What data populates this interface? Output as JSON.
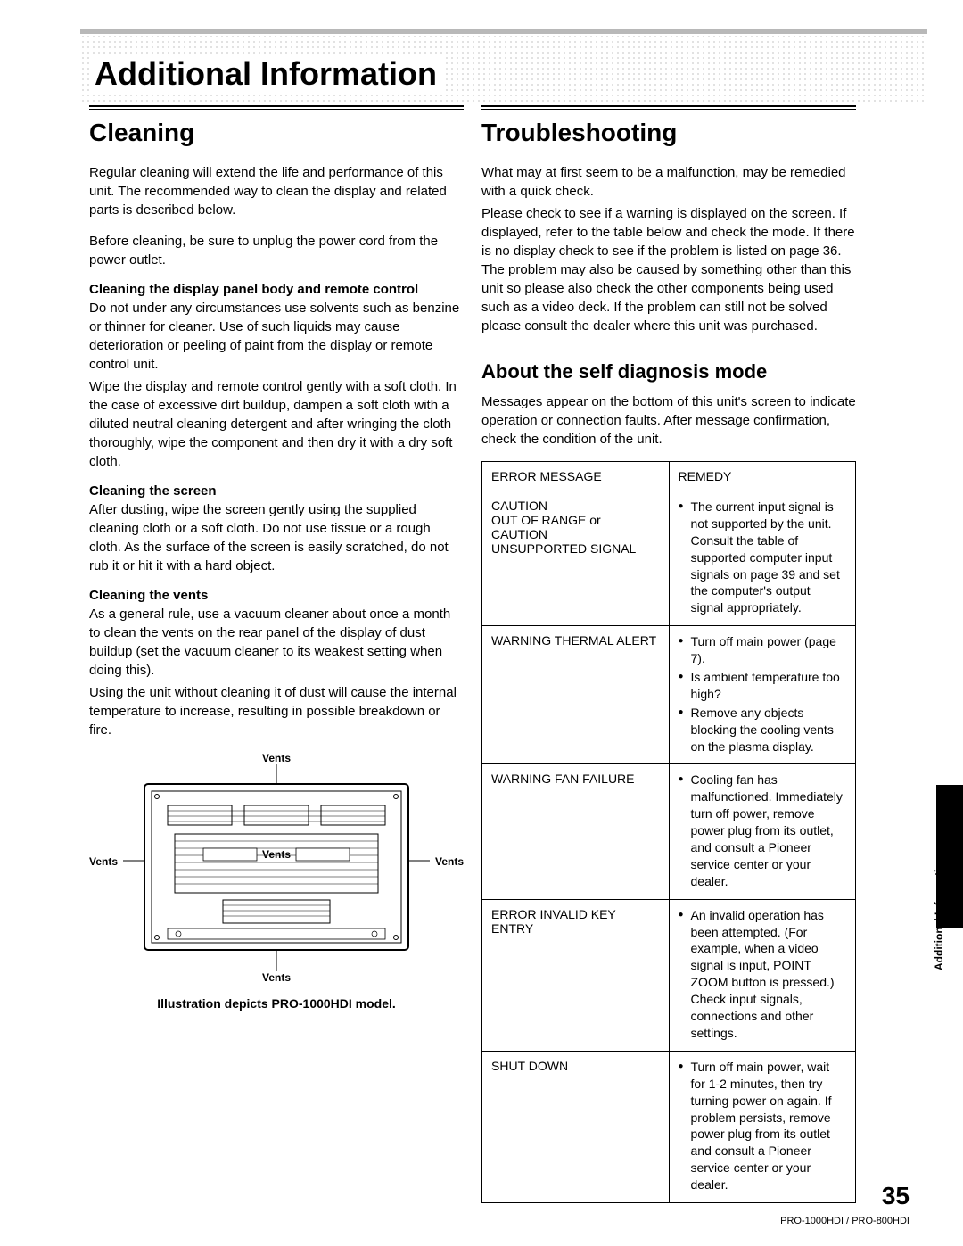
{
  "page": {
    "title": "Additional Information",
    "side_tab": "Additional Information",
    "number": "35",
    "footer_model": "PRO-1000HDI / PRO-800HDI"
  },
  "colors": {
    "text": "#000000",
    "rule_gray": "#b8b8b8",
    "background": "#ffffff"
  },
  "cleaning": {
    "heading": "Cleaning",
    "p1": "Regular cleaning will extend the life and performance of this unit. The recommended way to clean the display and related parts is described below.",
    "p2": "Before cleaning, be sure to unplug the power cord from the power outlet.",
    "sec1_title": "Cleaning the display panel body and remote control",
    "sec1_p1": "Do not under any circumstances use solvents such as benzine or thinner for cleaner. Use of such liquids may cause deterioration or peeling of paint from the display or remote control unit.",
    "sec1_p2": "Wipe the display and remote control gently with a soft cloth. In the case of excessive dirt buildup, dampen a soft cloth with a diluted neutral cleaning detergent and after wringing the cloth thoroughly, wipe the component and then dry it with a dry soft cloth.",
    "sec2_title": "Cleaning the screen",
    "sec2_p1": "After dusting, wipe the screen gently using the supplied cleaning cloth or a soft cloth. Do not use tissue or a rough cloth. As the surface of the screen is easily scratched, do not rub it or hit it with a hard object.",
    "sec3_title": "Cleaning the vents",
    "sec3_p1": "As a general rule, use a vacuum cleaner about once a month to clean the vents on the rear panel of the display of dust buildup (set the vacuum cleaner to its weakest setting when doing this).",
    "sec3_p2": "Using the unit without cleaning it of dust will cause the internal temperature to increase, resulting in possible breakdown or fire.",
    "diagram": {
      "label_top": "Vents",
      "label_left": "Vents",
      "label_right": "Vents",
      "label_center": "Vents",
      "label_bottom": "Vents",
      "caption": "Illustration depicts PRO-1000HDI model."
    }
  },
  "troubleshooting": {
    "heading": "Troubleshooting",
    "p1": "What may at first seem to be a malfunction, may be remedied with a quick check.",
    "p2": "Please check to see if a warning is displayed on the screen. If displayed, refer to the table below and check the mode. If there is no display check to see if the problem is listed on page 36. The problem may also be caused by something other than this unit so please also check the other components being used such as a video deck. If the problem can still not be solved please consult the dealer where this unit was purchased.",
    "sub_heading": "About the self diagnosis mode",
    "sub_p1": "Messages appear on the bottom of this unit's screen to indicate operation or connection faults. After message confirmation, check the condition of the unit.",
    "table": {
      "head_error": "ERROR MESSAGE",
      "head_remedy": "REMEDY",
      "rows": [
        {
          "error": "CAUTION\nOUT OF RANGE or\nCAUTION\nUNSUPPORTED SIGNAL",
          "remedy": [
            "The current input signal is not supported by the unit. Consult the table of supported computer input signals on page 39 and set the computer's output signal appropriately."
          ]
        },
        {
          "error": "WARNING THERMAL ALERT",
          "remedy": [
            "Turn off main power (page 7).",
            "Is ambient temperature too high?",
            "Remove any objects blocking the cooling vents on the plasma display."
          ]
        },
        {
          "error": "WARNING FAN FAILURE",
          "remedy": [
            "Cooling fan has malfunctioned. Immediately turn off power, remove power plug from its outlet, and consult a Pioneer service center or your dealer."
          ]
        },
        {
          "error": "ERROR INVALID KEY ENTRY",
          "remedy": [
            "An invalid operation has been attempted. (For example, when a video signal is input, POINT ZOOM button is pressed.) Check input signals, connections and other settings."
          ]
        },
        {
          "error": "SHUT DOWN",
          "remedy": [
            "Turn off main power, wait for 1-2 minutes, then try turning power on again. If problem persists, remove power plug from its outlet and consult a Pioneer service center or your dealer."
          ]
        }
      ]
    }
  }
}
